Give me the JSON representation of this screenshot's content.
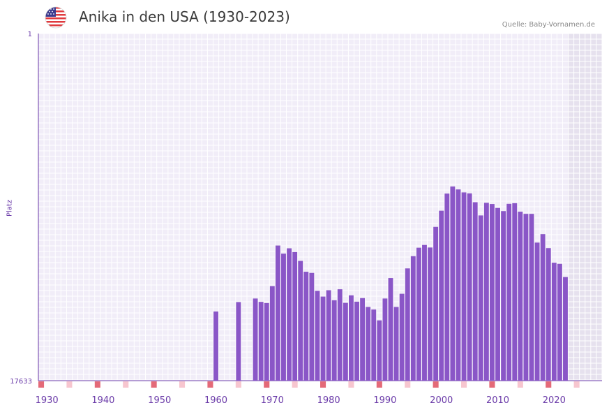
{
  "header": {
    "title": "Anika in den USA (1930-2023)",
    "source": "Quelle: Baby-Vornamen.de",
    "flag_icon": "us-flag-icon"
  },
  "chart_data": {
    "type": "bar",
    "title": "Anika in den USA (1930-2023)",
    "ylabel": "Platz",
    "ylim": [
      1,
      17633
    ],
    "y_axis_inverted": true,
    "y_tick_labels": [
      "1",
      "17633"
    ],
    "x_tick_labels": [
      "1930",
      "1940",
      "1950",
      "1960",
      "1970",
      "1980",
      "1990",
      "2000",
      "2010",
      "2020"
    ],
    "x_range": [
      1929,
      2028
    ],
    "shaded_future_from": 2023,
    "colors": {
      "bar": "#8a56c7",
      "accent": "#6a3aa8",
      "marker": "#e46a78",
      "marker_light": "#f7c6cf"
    },
    "series": [
      {
        "name": "Platz",
        "x": [
          1960,
          1964,
          1967,
          1968,
          1969,
          1970,
          1971,
          1972,
          1973,
          1974,
          1975,
          1976,
          1977,
          1978,
          1979,
          1980,
          1981,
          1982,
          1983,
          1984,
          1985,
          1986,
          1987,
          1988,
          1989,
          1990,
          1991,
          1992,
          1993,
          1994,
          1995,
          1996,
          1997,
          1998,
          1999,
          2000,
          2001,
          2002,
          2003,
          2004,
          2005,
          2006,
          2007,
          2008,
          2009,
          2010,
          2011,
          2012,
          2013,
          2014,
          2015,
          2016,
          2017,
          2018,
          2019,
          2020,
          2021,
          2022
        ],
        "values": [
          14120,
          13640,
          13460,
          13630,
          13690,
          12830,
          10770,
          11180,
          10910,
          11100,
          11550,
          12100,
          12160,
          13070,
          13360,
          13040,
          13550,
          12990,
          13680,
          13300,
          13620,
          13440,
          13890,
          14020,
          14570,
          13460,
          12420,
          13890,
          13220,
          11930,
          11310,
          10880,
          10740,
          10870,
          9820,
          9000,
          8130,
          7770,
          7920,
          8070,
          8120,
          8570,
          9240,
          8600,
          8660,
          8860,
          9020,
          8650,
          8620,
          9050,
          9160,
          9160,
          10620,
          10190,
          10900,
          11640,
          11700,
          12370
        ]
      }
    ]
  }
}
